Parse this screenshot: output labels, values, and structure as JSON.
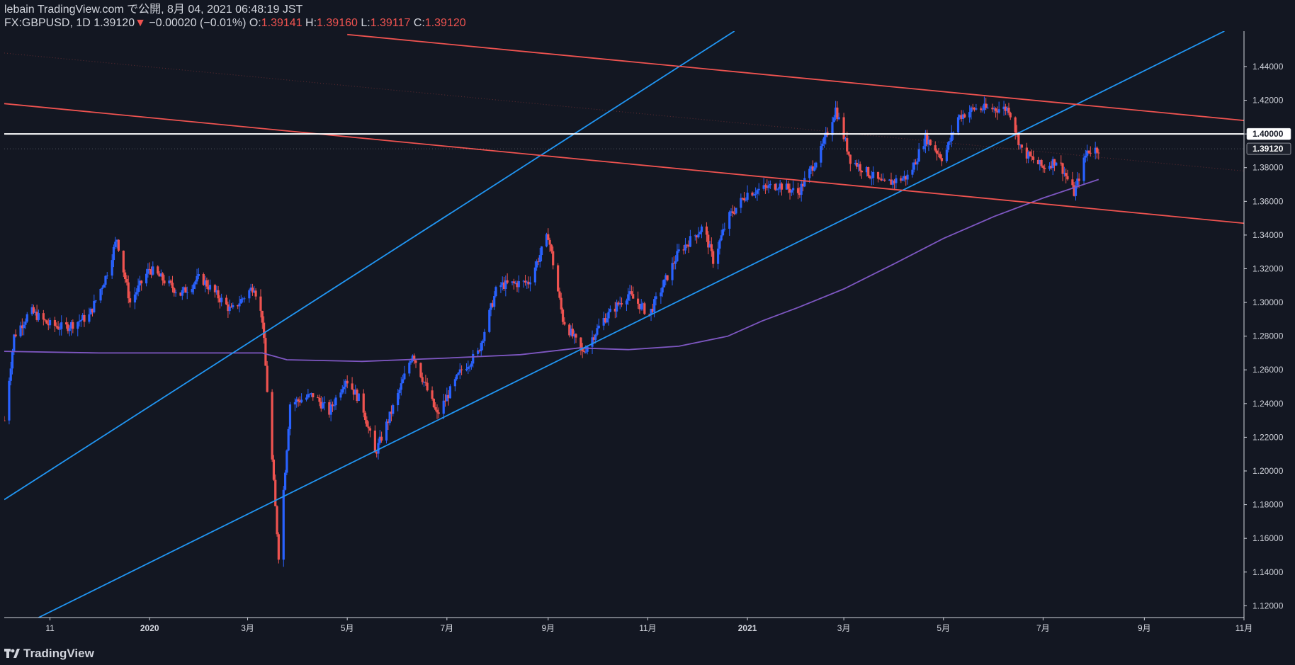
{
  "header": {
    "published_line": "lebain TradingView.com で公開, 8月 04, 2021 06:48:19 JST",
    "symbol": "FX:GBPUSD, 1D",
    "last": "1.39120",
    "change_arrow": "▼",
    "change": "−0.00020 (−0.01%)",
    "o_label": "O:",
    "o_value": "1.39141",
    "h_label": "H:",
    "h_value": "1.39160",
    "l_label": "L:",
    "l_value": "1.39117",
    "c_label": "C:",
    "c_value": "1.39120"
  },
  "footer": {
    "brand": "TradingView"
  },
  "colors": {
    "background": "#131722",
    "up_candle": "#2962ff",
    "down_candle": "#ef5350",
    "trend_blue": "#2196f3",
    "trend_red": "#ef5350",
    "moving_average": "#7e57c2",
    "level_line": "#ffffff"
  },
  "chart_data": {
    "type": "candlestick",
    "symbol": "GBPUSD",
    "timeframe": "1D",
    "ylim": [
      1.113,
      1.461
    ],
    "y_ticks": [
      "1.44000",
      "1.42000",
      "1.40000",
      "1.38000",
      "1.36000",
      "1.34000",
      "1.32000",
      "1.30000",
      "1.28000",
      "1.26000",
      "1.24000",
      "1.22000",
      "1.20000",
      "1.18000",
      "1.16000",
      "1.14000",
      "1.12000"
    ],
    "x_ticks": [
      "11",
      "2020",
      "3月",
      "5月",
      "7月",
      "9月",
      "11月",
      "2021",
      "3月",
      "5月",
      "7月",
      "9月",
      "11月"
    ],
    "x_tick_dates": [
      "2019-11-01",
      "2020-01-01",
      "2020-03-01",
      "2020-05-01",
      "2020-07-01",
      "2020-09-01",
      "2020-11-01",
      "2021-01-01",
      "2021-03-01",
      "2021-05-01",
      "2021-07-01",
      "2021-09-01",
      "2021-11-01"
    ],
    "xlim": [
      "2019-10-04",
      "2021-11-01"
    ],
    "horizontal_level": 1.4,
    "current_price": 1.3912,
    "price_path": [
      [
        "2019-10-04",
        1.23
      ],
      [
        "2019-10-10",
        1.28
      ],
      [
        "2019-10-20",
        1.295
      ],
      [
        "2019-10-31",
        1.287
      ],
      [
        "2019-11-10",
        1.285
      ],
      [
        "2019-11-25",
        1.292
      ],
      [
        "2019-12-05",
        1.315
      ],
      [
        "2019-12-12",
        1.338
      ],
      [
        "2019-12-20",
        1.3
      ],
      [
        "2020-01-01",
        1.32
      ],
      [
        "2020-01-20",
        1.305
      ],
      [
        "2020-02-01",
        1.315
      ],
      [
        "2020-02-20",
        1.295
      ],
      [
        "2020-03-05",
        1.31
      ],
      [
        "2020-03-10",
        1.29
      ],
      [
        "2020-03-20",
        1.15
      ],
      [
        "2020-03-27",
        1.24
      ],
      [
        "2020-04-10",
        1.245
      ],
      [
        "2020-04-20",
        1.235
      ],
      [
        "2020-04-30",
        1.255
      ],
      [
        "2020-05-10",
        1.24
      ],
      [
        "2020-05-18",
        1.21
      ],
      [
        "2020-06-01",
        1.245
      ],
      [
        "2020-06-10",
        1.27
      ],
      [
        "2020-06-25",
        1.233
      ],
      [
        "2020-07-10",
        1.26
      ],
      [
        "2020-07-20",
        1.27
      ],
      [
        "2020-08-01",
        1.31
      ],
      [
        "2020-08-20",
        1.312
      ],
      [
        "2020-09-01",
        1.34
      ],
      [
        "2020-09-10",
        1.29
      ],
      [
        "2020-09-22",
        1.27
      ],
      [
        "2020-10-05",
        1.29
      ],
      [
        "2020-10-20",
        1.305
      ],
      [
        "2020-11-02",
        1.293
      ],
      [
        "2020-11-20",
        1.33
      ],
      [
        "2020-12-05",
        1.345
      ],
      [
        "2020-12-11",
        1.325
      ],
      [
        "2020-12-20",
        1.35
      ],
      [
        "2021-01-01",
        1.365
      ],
      [
        "2021-01-20",
        1.37
      ],
      [
        "2021-02-01",
        1.365
      ],
      [
        "2021-02-15",
        1.39
      ],
      [
        "2021-02-24",
        1.415
      ],
      [
        "2021-03-05",
        1.385
      ],
      [
        "2021-03-25",
        1.37
      ],
      [
        "2021-04-10",
        1.375
      ],
      [
        "2021-04-20",
        1.398
      ],
      [
        "2021-05-01",
        1.385
      ],
      [
        "2021-05-10",
        1.41
      ],
      [
        "2021-05-20",
        1.415
      ],
      [
        "2021-06-10",
        1.415
      ],
      [
        "2021-06-18",
        1.39
      ],
      [
        "2021-07-01",
        1.38
      ],
      [
        "2021-07-10",
        1.385
      ],
      [
        "2021-07-20",
        1.365
      ],
      [
        "2021-07-28",
        1.39
      ],
      [
        "2021-08-04",
        1.3912
      ]
    ],
    "moving_average": [
      [
        "2019-10-04",
        1.271
      ],
      [
        "2019-12-01",
        1.27
      ],
      [
        "2020-02-01",
        1.27
      ],
      [
        "2020-03-10",
        1.27
      ],
      [
        "2020-03-25",
        1.266
      ],
      [
        "2020-05-10",
        1.265
      ],
      [
        "2020-07-01",
        1.267
      ],
      [
        "2020-08-15",
        1.269
      ],
      [
        "2020-09-20",
        1.273
      ],
      [
        "2020-10-20",
        1.272
      ],
      [
        "2020-11-20",
        1.274
      ],
      [
        "2020-12-20",
        1.28
      ],
      [
        "2021-01-10",
        1.289
      ],
      [
        "2021-02-01",
        1.297
      ],
      [
        "2021-03-01",
        1.308
      ],
      [
        "2021-04-01",
        1.323
      ],
      [
        "2021-05-01",
        1.338
      ],
      [
        "2021-06-01",
        1.351
      ],
      [
        "2021-07-01",
        1.362
      ],
      [
        "2021-08-04",
        1.373
      ]
    ],
    "trend_lines": [
      {
        "color": "blue",
        "from": [
          "2019-10-04",
          1.183
        ],
        "to": [
          "2020-12-24",
          1.461
        ]
      },
      {
        "color": "blue",
        "from": [
          "2019-10-25",
          1.113
        ],
        "to": [
          "2021-10-20",
          1.461
        ]
      },
      {
        "color": "red",
        "from": [
          "2019-10-04",
          1.418
        ],
        "to": [
          "2021-11-01",
          1.347
        ]
      },
      {
        "color": "red",
        "from": [
          "2020-05-01",
          1.459
        ],
        "to": [
          "2021-11-01",
          1.408
        ]
      }
    ]
  }
}
